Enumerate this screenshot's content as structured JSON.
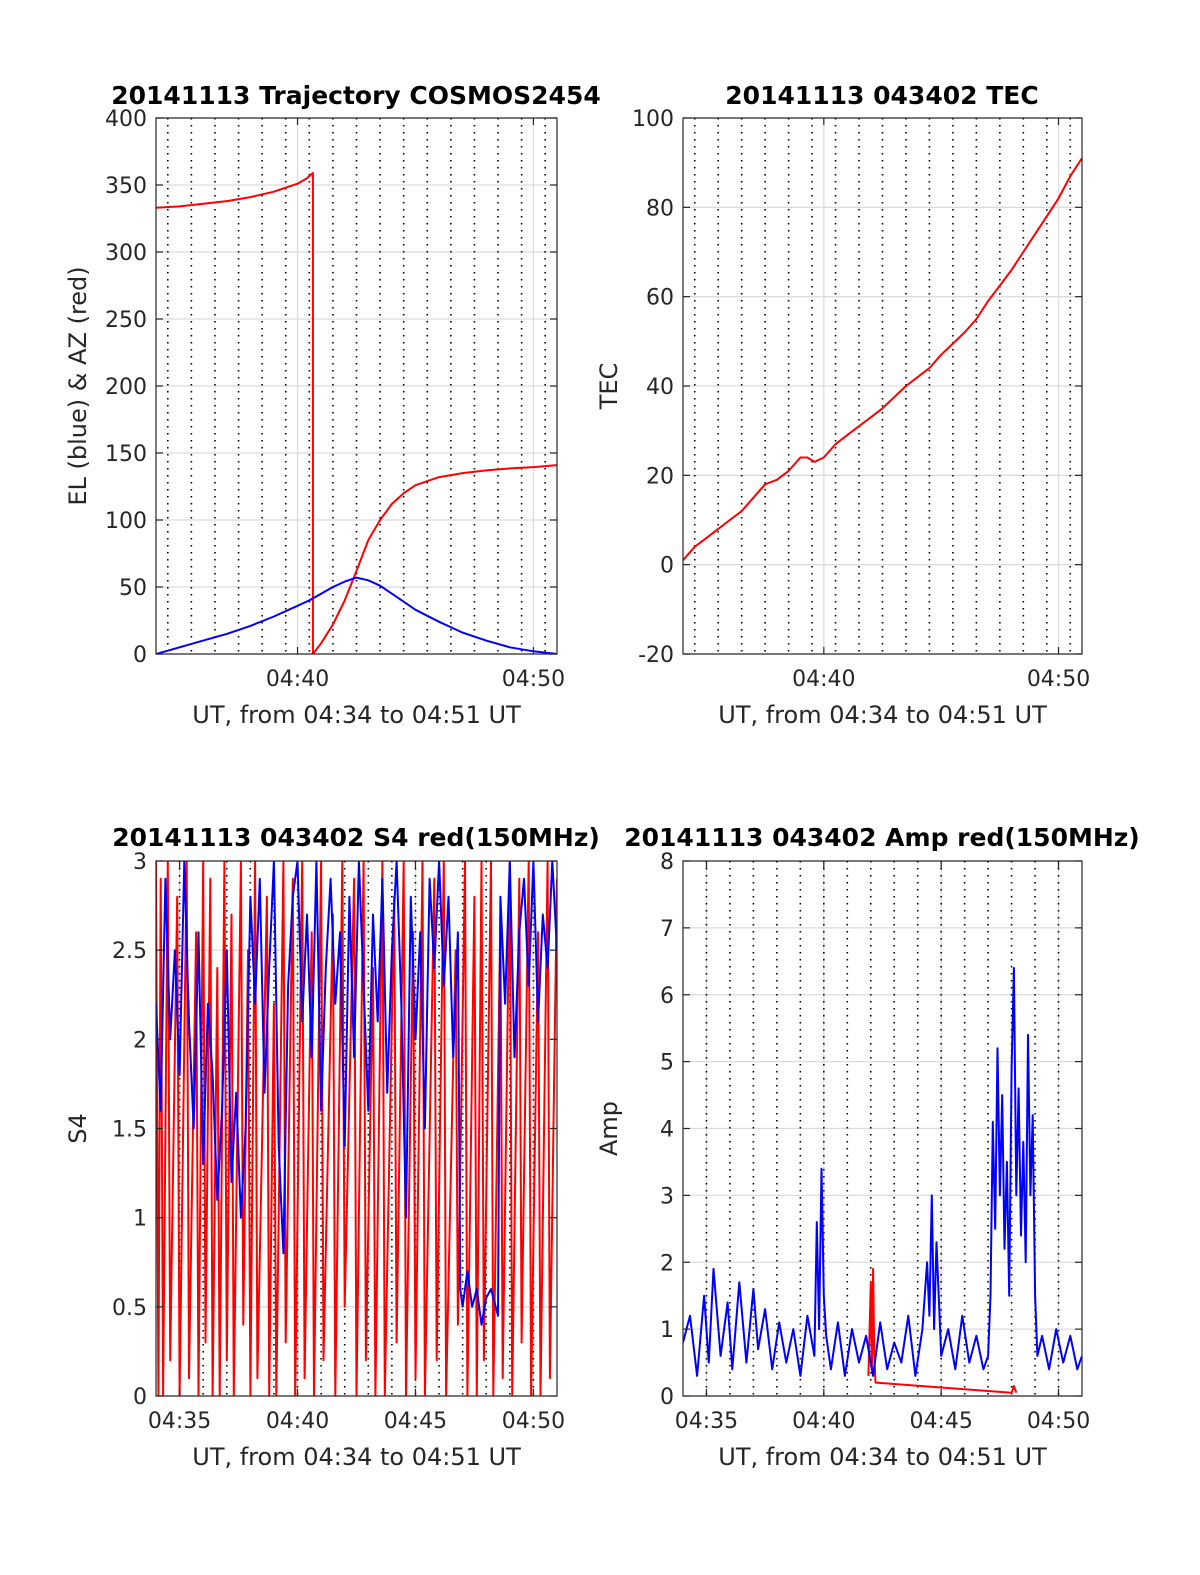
{
  "colors": {
    "red": "#ff0000",
    "blue": "#0000ff"
  },
  "chart_data": [
    {
      "id": "trajectory",
      "type": "line",
      "title": "20141113 Trajectory COSMOS2454",
      "xlabel": "UT, from 04:34 to 04:51 UT",
      "ylabel": "EL (blue) & AZ (red)",
      "xlim": [
        34.0,
        51.0
      ],
      "ylim": [
        0,
        400
      ],
      "xticks": [
        40,
        50
      ],
      "xticklabels": [
        "04:40",
        "04:50"
      ],
      "yticks": [
        0,
        50,
        100,
        150,
        200,
        250,
        300,
        350,
        400
      ],
      "yticklabels": [
        "0",
        "50",
        "100",
        "150",
        "200",
        "250",
        "300",
        "350",
        "400"
      ],
      "dotted_x": [
        34.5,
        35.5,
        36.5,
        37.5,
        38.5,
        39.5,
        40.5,
        41.5,
        42.5,
        43.5,
        44.5,
        45.5,
        46.5,
        47.5,
        48.5,
        49.5,
        50.5
      ],
      "grid": true,
      "series": [
        {
          "color": "red",
          "x": [
            34.0,
            35.0,
            36.0,
            37.0,
            38.0,
            39.0,
            40.0,
            40.4,
            40.65,
            40.65,
            41.0,
            41.5,
            42.0,
            42.5,
            43.0,
            43.5,
            44.0,
            44.5,
            45.0,
            46.0,
            47.0,
            48.0,
            49.0,
            50.0,
            51.0
          ],
          "y": [
            333,
            334,
            336,
            338,
            341,
            345,
            351,
            355,
            359,
            0,
            8,
            22,
            40,
            62,
            85,
            100,
            112,
            120,
            126,
            132,
            135,
            137,
            138.5,
            139.5,
            141
          ]
        },
        {
          "color": "blue",
          "x": [
            34.0,
            35.0,
            36.0,
            37.0,
            38.0,
            39.0,
            40.0,
            40.5,
            41.0,
            41.5,
            42.0,
            42.5,
            43.0,
            43.5,
            44.0,
            44.5,
            45.0,
            46.0,
            47.0,
            48.0,
            49.0,
            50.0,
            51.0
          ],
          "y": [
            0,
            5,
            10,
            15,
            21,
            28,
            36,
            40,
            45,
            50,
            54,
            57,
            55,
            51,
            45,
            39,
            33,
            24,
            16,
            10,
            5,
            2,
            0
          ]
        }
      ]
    },
    {
      "id": "tec",
      "type": "line",
      "title": "20141113 043402 TEC",
      "xlabel": "UT, from 04:34 to 04:51 UT",
      "ylabel": "TEC",
      "xlim": [
        34.0,
        51.0
      ],
      "ylim": [
        -20,
        100
      ],
      "xticks": [
        40,
        50
      ],
      "xticklabels": [
        "04:40",
        "04:50"
      ],
      "yticks": [
        -20,
        0,
        20,
        40,
        60,
        80,
        100
      ],
      "yticklabels": [
        "-20",
        "0",
        "20",
        "40",
        "60",
        "80",
        "100"
      ],
      "dotted_x": [
        34.5,
        35.5,
        36.5,
        37.5,
        38.5,
        39.5,
        40.5,
        41.5,
        42.5,
        43.5,
        44.5,
        45.5,
        46.5,
        47.5,
        48.5,
        49.5,
        50.5
      ],
      "grid": true,
      "series": [
        {
          "color": "red",
          "x": [
            34.0,
            34.5,
            35.0,
            35.5,
            36.0,
            36.5,
            37.0,
            37.5,
            38.0,
            38.5,
            39.0,
            39.3,
            39.6,
            40.0,
            40.5,
            41.0,
            41.5,
            42.0,
            42.5,
            43.0,
            43.5,
            44.0,
            44.5,
            45.0,
            45.5,
            46.0,
            46.5,
            47.0,
            47.5,
            48.0,
            48.5,
            49.0,
            49.5,
            50.0,
            50.5,
            51.0
          ],
          "y": [
            1,
            4,
            6,
            8,
            10,
            12,
            15,
            18,
            19,
            21,
            24,
            24,
            23,
            24,
            27,
            29,
            31,
            33,
            35,
            37.5,
            40,
            42,
            44,
            47,
            49.5,
            52,
            55,
            59,
            62.5,
            66,
            70,
            74,
            78,
            82,
            87,
            91
          ]
        }
      ]
    },
    {
      "id": "s4",
      "type": "line",
      "title": "20141113 043402 S4 red(150MHz)",
      "xlabel": "UT, from 04:34 to 04:51 UT",
      "ylabel": "S4",
      "xlim": [
        34.0,
        51.0
      ],
      "ylim": [
        0,
        3
      ],
      "xticks": [
        35,
        40,
        45,
        50
      ],
      "xticklabels": [
        "04:35",
        "04:40",
        "04:45",
        "04:50"
      ],
      "yticks": [
        0,
        0.5,
        1,
        1.5,
        2,
        2.5,
        3
      ],
      "yticklabels": [
        "0",
        "0.5",
        "1",
        "1.5",
        "2",
        "2.5",
        "3"
      ],
      "dotted_x": [
        35.0,
        36.0,
        37.0,
        38.0,
        39.0,
        40.0,
        41.0,
        42.0,
        43.0,
        44.0,
        45.0,
        46.0,
        47.0,
        48.0,
        49.0,
        50.0,
        51.0
      ],
      "grid": true,
      "series": [
        {
          "color": "red",
          "x": [
            34.0,
            34.1,
            34.2,
            34.3,
            34.5,
            34.6,
            34.9,
            35.0,
            35.3,
            35.4,
            35.7,
            35.8,
            36.0,
            36.1,
            36.3,
            36.4,
            36.6,
            36.7,
            36.9,
            37.0,
            37.2,
            37.3,
            37.6,
            37.7,
            37.9,
            38.0,
            38.2,
            38.3,
            38.7,
            38.8,
            39.0,
            39.1,
            39.4,
            39.5,
            39.8,
            39.9,
            40.2,
            40.3,
            40.6,
            40.7,
            41.0,
            41.1,
            41.5,
            41.6,
            41.9,
            42.0,
            42.4,
            42.5,
            42.8,
            42.9,
            43.2,
            43.3,
            43.6,
            43.7,
            44.1,
            44.2,
            44.5,
            44.6,
            44.9,
            45.0,
            45.3,
            45.4,
            45.8,
            45.9,
            46.2,
            46.3,
            46.7,
            46.8,
            47.1,
            47.2,
            47.5,
            47.6,
            47.8,
            47.9,
            48.2,
            48.3,
            48.6,
            48.7,
            49.0,
            49.1,
            49.4,
            49.5,
            49.8,
            49.9,
            50.2,
            50.3,
            50.6,
            50.7,
            51.0
          ],
          "y": [
            3,
            0,
            2.9,
            0,
            3,
            0.2,
            2.8,
            0,
            3,
            0.1,
            2.6,
            0,
            3,
            0.3,
            2.9,
            0,
            2.4,
            0,
            3,
            0.2,
            2.7,
            0,
            3,
            0.4,
            2.5,
            0,
            3,
            0.1,
            2.8,
            0,
            2.2,
            0,
            3,
            0.3,
            2.9,
            0,
            3,
            0.1,
            2.6,
            0,
            3,
            0.2,
            2.7,
            0,
            3,
            0.5,
            2.9,
            0,
            3,
            0.2,
            2.4,
            0,
            3,
            0,
            2.8,
            0.3,
            3,
            0,
            2.6,
            0.1,
            3,
            0,
            2.9,
            0.2,
            3,
            0,
            2.5,
            0.4,
            3,
            0,
            2.8,
            0,
            3,
            0.2,
            3,
            0,
            2.7,
            0.1,
            3,
            0,
            2.9,
            0.3,
            3,
            0,
            2.6,
            0,
            3,
            0.1,
            2.9
          ]
        },
        {
          "color": "blue",
          "x": [
            34.0,
            34.2,
            34.4,
            34.6,
            34.8,
            35.0,
            35.2,
            35.4,
            35.6,
            35.8,
            36.0,
            36.2,
            36.4,
            36.6,
            36.8,
            37.0,
            37.2,
            37.4,
            37.6,
            37.8,
            38.0,
            38.2,
            38.4,
            38.6,
            38.8,
            39.0,
            39.2,
            39.4,
            39.6,
            39.8,
            40.0,
            40.2,
            40.4,
            40.6,
            40.8,
            41.0,
            41.2,
            41.4,
            41.6,
            41.8,
            42.0,
            42.2,
            42.4,
            42.6,
            42.8,
            43.0,
            43.2,
            43.4,
            43.6,
            43.8,
            44.0,
            44.2,
            44.4,
            44.6,
            44.8,
            45.0,
            45.2,
            45.4,
            45.6,
            45.8,
            46.0,
            46.2,
            46.4,
            46.6,
            46.8,
            46.9,
            47.0,
            47.2,
            47.4,
            47.6,
            47.8,
            48.0,
            48.2,
            48.4,
            48.5,
            48.6,
            48.8,
            49.0,
            49.2,
            49.4,
            49.6,
            49.8,
            50.0,
            50.2,
            50.4,
            50.6,
            50.8,
            51.0
          ],
          "y": [
            2.2,
            1.6,
            2.9,
            2.0,
            2.5,
            1.8,
            3.0,
            2.1,
            1.5,
            2.6,
            1.3,
            2.2,
            1.8,
            1.1,
            1.6,
            2.5,
            1.2,
            1.7,
            1.0,
            1.5,
            2.8,
            2.2,
            2.9,
            1.7,
            2.4,
            3.0,
            1.4,
            0.8,
            2.3,
            2.8,
            3.0,
            2.1,
            2.7,
            1.9,
            3.0,
            1.6,
            2.4,
            2.9,
            2.2,
            2.6,
            1.4,
            2.8,
            1.9,
            3.0,
            2.3,
            1.6,
            2.7,
            2.1,
            2.9,
            1.7,
            2.5,
            3.0,
            2.2,
            1.0,
            2.8,
            2.0,
            2.6,
            1.5,
            2.9,
            2.4,
            3.0,
            2.3,
            2.8,
            1.9,
            2.6,
            0.6,
            0.5,
            0.7,
            0.5,
            0.6,
            0.4,
            0.55,
            0.6,
            0.5,
            0.45,
            2.8,
            2.2,
            3.0,
            1.9,
            2.6,
            2.9,
            2.3,
            3.0,
            2.1,
            2.7,
            2.4,
            3.0,
            2.5
          ]
        }
      ]
    },
    {
      "id": "amp",
      "type": "line",
      "title": "20141113 043402 Amp red(150MHz)",
      "xlabel": "UT, from 04:34 to 04:51 UT",
      "ylabel": "Amp",
      "xlim": [
        34.0,
        51.0
      ],
      "ylim": [
        0,
        8
      ],
      "xticks": [
        35,
        40,
        45,
        50
      ],
      "xticklabels": [
        "04:35",
        "04:40",
        "04:45",
        "04:50"
      ],
      "yticks": [
        0,
        1,
        2,
        3,
        4,
        5,
        6,
        7,
        8
      ],
      "yticklabels": [
        "0",
        "1",
        "2",
        "3",
        "4",
        "5",
        "6",
        "7",
        "8"
      ],
      "dotted_x": [
        35.0,
        36.0,
        37.0,
        38.0,
        39.0,
        40.0,
        41.0,
        42.0,
        43.0,
        44.0,
        45.0,
        46.0,
        47.0,
        48.0,
        49.0,
        50.0,
        51.0
      ],
      "grid": true,
      "series": [
        {
          "color": "red",
          "x": [
            41.9,
            42.0,
            42.05,
            42.1,
            42.15,
            42.2,
            48.0,
            48.1,
            48.2
          ],
          "y": [
            0.3,
            1.7,
            0.4,
            1.9,
            0.6,
            0.2,
            0.05,
            0.15,
            0.05
          ]
        },
        {
          "color": "blue",
          "x": [
            34.0,
            34.3,
            34.6,
            34.9,
            35.1,
            35.3,
            35.6,
            35.9,
            36.1,
            36.4,
            36.7,
            37.0,
            37.2,
            37.5,
            37.8,
            38.1,
            38.4,
            38.7,
            39.0,
            39.3,
            39.6,
            39.7,
            39.8,
            39.9,
            40.0,
            40.1,
            40.3,
            40.6,
            40.9,
            41.2,
            41.5,
            41.8,
            42.1,
            42.4,
            42.7,
            43.0,
            43.3,
            43.6,
            43.9,
            44.2,
            44.4,
            44.5,
            44.6,
            44.7,
            44.8,
            45.0,
            45.3,
            45.6,
            45.9,
            46.2,
            46.5,
            46.8,
            47.0,
            47.1,
            47.2,
            47.3,
            47.4,
            47.5,
            47.6,
            47.7,
            47.8,
            47.9,
            48.0,
            48.1,
            48.2,
            48.3,
            48.4,
            48.5,
            48.6,
            48.7,
            48.8,
            48.9,
            49.0,
            49.1,
            49.3,
            49.6,
            49.9,
            50.2,
            50.5,
            50.8,
            51.0
          ],
          "y": [
            0.8,
            1.2,
            0.3,
            1.5,
            0.5,
            1.9,
            0.6,
            1.4,
            0.4,
            1.7,
            0.5,
            1.6,
            0.7,
            1.3,
            0.4,
            1.1,
            0.5,
            1.0,
            0.3,
            1.2,
            0.6,
            2.6,
            1.0,
            3.4,
            1.5,
            0.9,
            0.4,
            1.1,
            0.3,
            1.0,
            0.5,
            0.9,
            0.3,
            1.1,
            0.4,
            0.8,
            0.5,
            1.2,
            0.3,
            1.0,
            2.0,
            1.2,
            3.0,
            1.0,
            2.3,
            0.6,
            1.0,
            0.4,
            1.2,
            0.5,
            0.9,
            0.4,
            0.6,
            1.5,
            4.1,
            2.5,
            5.2,
            3.0,
            4.5,
            2.2,
            3.5,
            1.5,
            4.9,
            6.4,
            3.0,
            4.6,
            2.4,
            3.8,
            2.0,
            5.4,
            3.0,
            4.2,
            1.5,
            0.6,
            0.9,
            0.4,
            1.0,
            0.5,
            0.9,
            0.4,
            0.6
          ]
        }
      ]
    }
  ]
}
